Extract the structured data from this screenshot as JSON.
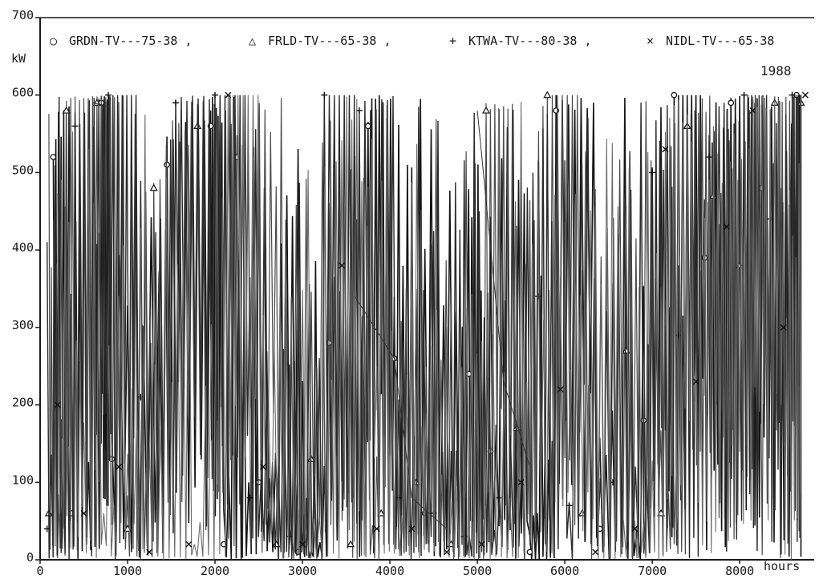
{
  "chart_data": {
    "type": "line",
    "title": "",
    "ylabel": "kW",
    "xlabel": "hours",
    "annotation": "1988",
    "xlim": [
      0,
      8760
    ],
    "ylim": [
      0,
      700
    ],
    "xticks": [
      0,
      1000,
      2000,
      3000,
      4000,
      5000,
      6000,
      7000,
      8000
    ],
    "yticks": [
      0,
      100,
      200,
      300,
      400,
      500,
      600,
      700
    ],
    "grid": false,
    "legend_position": "top",
    "legend": [
      {
        "symbol": "○",
        "label": "GRDN-TV---75-38 ,"
      },
      {
        "symbol": "△",
        "label": "FRLD-TV---65-38 ,"
      },
      {
        "symbol": "+",
        "label": "KTWA-TV---80-38 ,"
      },
      {
        "symbol": "×",
        "label": "NIDL-TV---65-38"
      }
    ],
    "series": [
      {
        "marker": "circle",
        "x": [
          150,
          360,
          700,
          820,
          1450,
          1950,
          2100,
          2500,
          2950,
          3300,
          3750,
          4050,
          4400,
          4900,
          5150,
          5600,
          5900,
          6400,
          6900,
          7250,
          7600,
          7900,
          8250,
          8650
        ],
        "y": [
          520,
          60,
          590,
          130,
          510,
          560,
          20,
          100,
          10,
          280,
          560,
          260,
          60,
          240,
          140,
          10,
          580,
          40,
          180,
          600,
          390,
          590,
          480,
          600
        ]
      },
      {
        "marker": "triangle",
        "x": [
          100,
          300,
          650,
          1000,
          1300,
          1800,
          2250,
          2700,
          3100,
          3550,
          3900,
          4300,
          4700,
          5100,
          5450,
          5800,
          6200,
          6700,
          7100,
          7400,
          7700,
          8000,
          8400,
          8700
        ],
        "y": [
          60,
          580,
          590,
          40,
          480,
          560,
          520,
          20,
          130,
          20,
          60,
          100,
          20,
          580,
          170,
          600,
          60,
          270,
          60,
          560,
          470,
          380,
          590,
          590
        ]
      },
      {
        "marker": "plus",
        "x": [
          80,
          400,
          780,
          1150,
          1550,
          2000,
          2400,
          2850,
          3250,
          3650,
          4100,
          4500,
          4850,
          5250,
          5700,
          6050,
          6550,
          7000,
          7300,
          7650,
          8050,
          8350,
          8600
        ],
        "y": [
          40,
          560,
          600,
          210,
          590,
          600,
          80,
          30,
          600,
          580,
          80,
          60,
          30,
          80,
          340,
          70,
          100,
          500,
          290,
          520,
          600,
          440,
          600
        ]
      },
      {
        "marker": "x",
        "x": [
          200,
          500,
          900,
          1250,
          1700,
          2150,
          2550,
          3000,
          3450,
          3850,
          4250,
          4650,
          5050,
          5500,
          5950,
          6350,
          6800,
          7150,
          7500,
          7850,
          8150,
          8500,
          8750
        ],
        "y": [
          200,
          60,
          120,
          10,
          20,
          600,
          120,
          20,
          380,
          40,
          40,
          10,
          20,
          100,
          220,
          10,
          40,
          530,
          230,
          430,
          580,
          300,
          600
        ]
      }
    ]
  }
}
